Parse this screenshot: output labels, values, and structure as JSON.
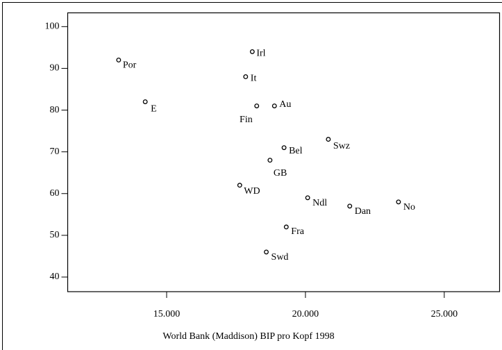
{
  "chart_data": {
    "type": "scatter",
    "x_label": "World Bank (Maddison) BIP pro Kopf 1998",
    "labels": [
      "Por",
      "E",
      "Irl",
      "It",
      "Fin",
      "Au",
      "Swz",
      "Bel",
      "GB",
      "WD",
      "Ndl",
      "Dan",
      "No",
      "Fra",
      "Swd"
    ],
    "x": [
      13271,
      14229,
      18085,
      17846,
      18245,
      18883,
      20824,
      19229,
      18723,
      17633,
      20080,
      21596,
      23351,
      19309,
      18590
    ],
    "y": [
      92,
      82,
      94,
      88,
      81,
      81,
      73,
      71,
      68,
      62,
      59,
      57,
      58,
      52,
      46
    ],
    "color": "#000000",
    "xlim": [
      11436,
      27005
    ],
    "ylim": [
      36.5,
      103.3
    ],
    "xticks": [
      {
        "value": 15000,
        "label": "15.000"
      },
      {
        "value": 20000,
        "label": "20.000"
      },
      {
        "value": 25000,
        "label": "25.000"
      }
    ],
    "yticks": [
      40,
      50,
      60,
      70,
      80,
      90,
      100
    ],
    "grid": false
  }
}
